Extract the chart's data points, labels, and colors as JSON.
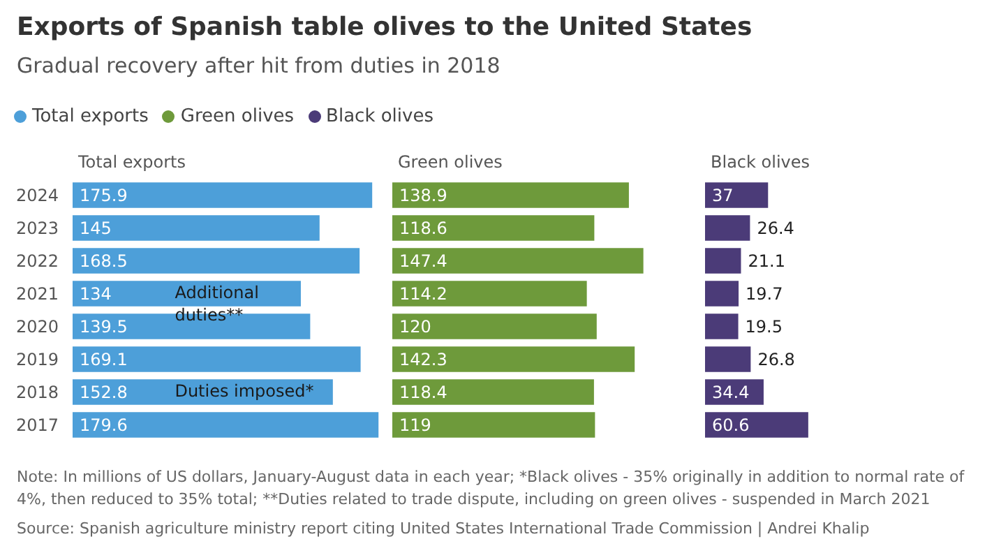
{
  "chart_data": [
    {
      "type": "bar",
      "orientation": "horizontal",
      "title": "Exports of Spanish table olives to the United States",
      "subtitle": "Gradual recovery after hit from duties in 2018",
      "legend": "top left",
      "data_labels": true,
      "categories": [
        "2024",
        "2023",
        "2022",
        "2021",
        "2020",
        "2019",
        "2018",
        "2017"
      ],
      "series": [
        {
          "name": "Total exports",
          "color": "#4d9fd9",
          "values": [
            175.9,
            145,
            168.5,
            134,
            139.5,
            169.1,
            152.8,
            179.6
          ]
        }
      ],
      "annotations": [
        {
          "text": "Additional duties**",
          "x": 60,
          "y": "2021"
        },
        {
          "text": "Duties imposed*",
          "x": 60,
          "y": "2018"
        },
        "Note: In millions of US dollars, January-August data in each year; *Black olives - 35% originally in addition to normal rate of 4%, then reduced to 35% total; **Duties related to trade dispute, including on green olives - suspended in March 2021",
        "Source: Spanish agriculture ministry report citing United States International Trade Commission | Andrei Khalip"
      ]
    },
    {
      "type": "bar",
      "orientation": "horizontal",
      "legend": "top left",
      "data_labels": true,
      "tick_labels": false,
      "categories": [
        "2024",
        "2023",
        "2022",
        "2021",
        "2020",
        "2019",
        "2018",
        "2017"
      ],
      "series": [
        {
          "name": "Green olives",
          "color": "#6e9a3b",
          "values": [
            138.9,
            118.6,
            147.4,
            114.2,
            120,
            142.3,
            118.4,
            119
          ]
        }
      ]
    },
    {
      "type": "bar",
      "orientation": "horizontal",
      "legend": "top left",
      "data_labels": true,
      "tick_labels": false,
      "categories": [
        "2024",
        "2023",
        "2022",
        "2021",
        "2020",
        "2019",
        "2018",
        "2017"
      ],
      "series": [
        {
          "name": "Black olives",
          "color": "#4b3b78",
          "values": [
            37,
            26.4,
            21.1,
            19.7,
            19.5,
            26.8,
            34.4,
            60.6
          ]
        }
      ]
    }
  ]
}
